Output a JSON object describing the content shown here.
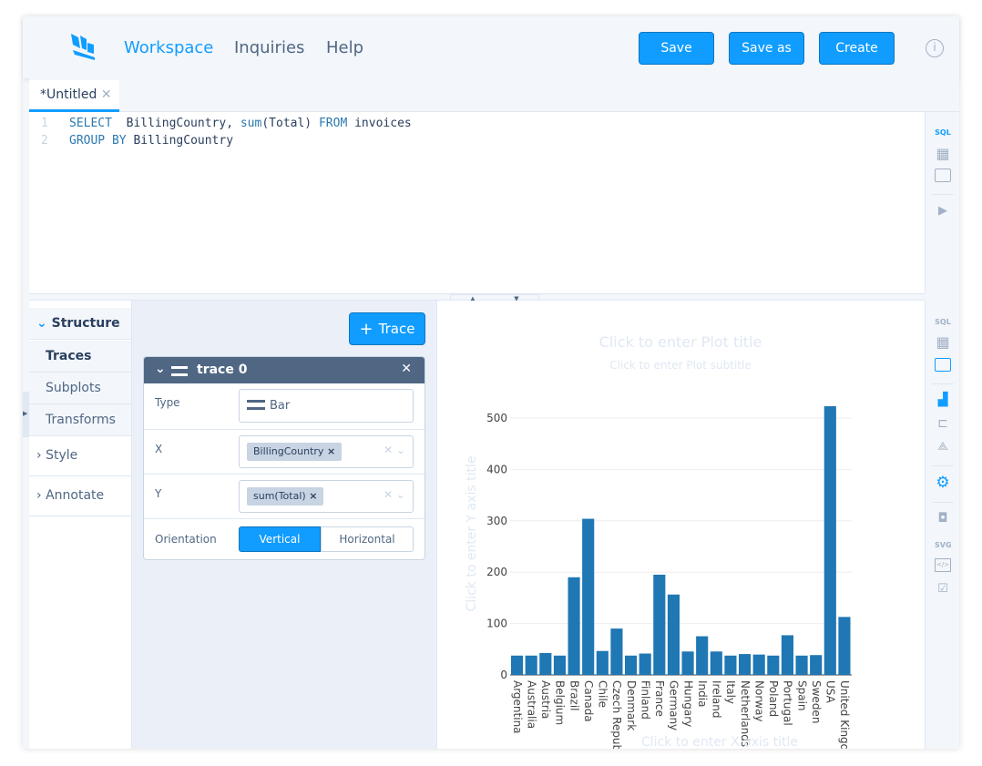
{
  "header": {
    "nav": [
      "Workspace",
      "Inquiries",
      "Help"
    ],
    "buttons": {
      "save": "Save",
      "save_as": "Save as",
      "create": "Create"
    },
    "accent": "#119dff"
  },
  "tab": {
    "label": "*Untitled"
  },
  "editor": {
    "lines": [
      {
        "num": "1",
        "kw1": "SELECT",
        "t1": "  BillingCountry, ",
        "kw2": "sum",
        "t2": "(Total) ",
        "kw3": "FROM",
        "t3": " invoices"
      },
      {
        "num": "2",
        "kw1": "GROUP BY",
        "t1": " BillingCountry"
      }
    ]
  },
  "toolbar_top": {
    "sql": "SQL"
  },
  "toolbar_bottom": {
    "sql": "SQL",
    "svg": "SVG"
  },
  "leftnav": {
    "structure": "Structure",
    "traces": "Traces",
    "subplots": "Subplots",
    "transforms": "Transforms",
    "style": "Style",
    "annotate": "Annotate"
  },
  "panel": {
    "add_trace": "Trace",
    "trace_name": "trace 0",
    "type_label": "Type",
    "type_value": "Bar",
    "x_label": "X",
    "x_value": "BillingCountry",
    "y_label": "Y",
    "y_value": "sum(Total)",
    "orientation_label": "Orientation",
    "vertical": "Vertical",
    "horizontal": "Horizontal"
  },
  "plot": {
    "title_placeholder": "Click to enter Plot title",
    "subtitle_placeholder": "Click to enter Plot subtitle"
  },
  "chart_data": {
    "type": "bar",
    "categories": [
      "Argentina",
      "Australia",
      "Austria",
      "Belgium",
      "Brazil",
      "Canada",
      "Chile",
      "Czech Republic",
      "Denmark",
      "Finland",
      "France",
      "Germany",
      "Hungary",
      "India",
      "Ireland",
      "Italy",
      "Netherlands",
      "Norway",
      "Poland",
      "Portugal",
      "Spain",
      "Sweden",
      "USA",
      "United Kingdom"
    ],
    "values": [
      37.62,
      37.62,
      42.62,
      37.62,
      190.1,
      303.96,
      46.62,
      90.24,
      37.62,
      41.62,
      195.1,
      156.48,
      45.62,
      75.26,
      45.62,
      37.62,
      40.62,
      39.62,
      37.62,
      77.24,
      37.62,
      38.62,
      523.06,
      112.86
    ],
    "xlabel": "Click to enter X axis title",
    "ylabel": "Click to enter Y axis title",
    "yticks": [
      0,
      100,
      200,
      300,
      400,
      500
    ],
    "ylim": [
      0,
      530
    ],
    "grid": true,
    "color": "#1f77b4"
  }
}
